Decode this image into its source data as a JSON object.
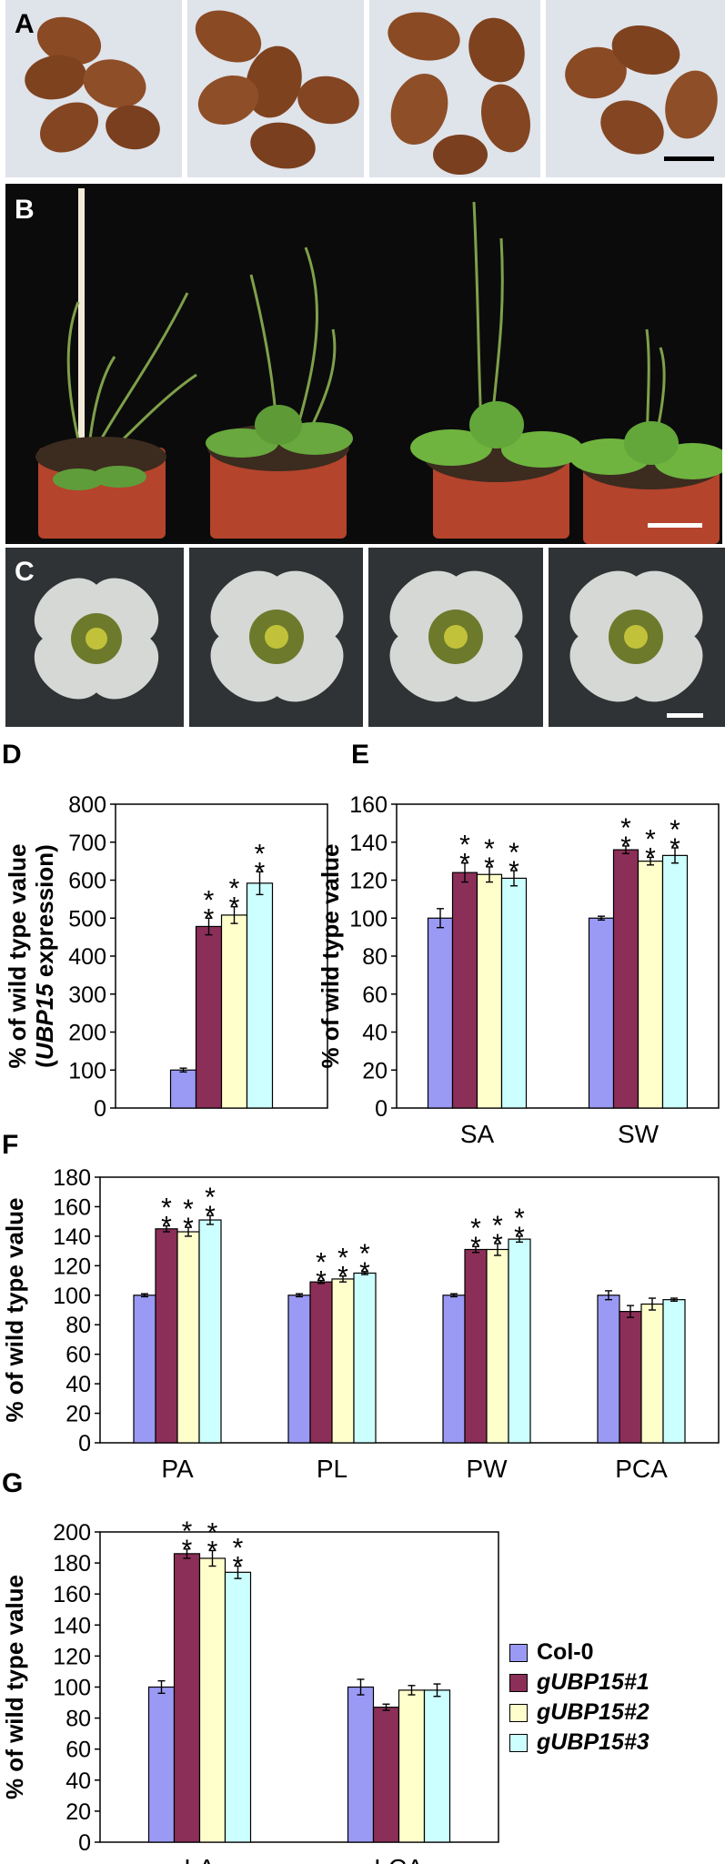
{
  "panel_labels": {
    "A": "A",
    "B": "B",
    "C": "C",
    "D": "D",
    "E": "E",
    "F": "F",
    "G": "G"
  },
  "colors": {
    "col0": "#9a9af5",
    "g1": "#8b2f58",
    "g2": "#ffffcc",
    "g3": "#ccffff",
    "photo_a_bg": "#dfe3ea",
    "photo_b_bg": "#0b0b0b",
    "photo_c_bg": "#2f3336"
  },
  "legend": [
    {
      "label": "Col-0",
      "color": "#9a9af5",
      "italic": false
    },
    {
      "label": "gUBP15#1",
      "color": "#8b2f58",
      "italic": true
    },
    {
      "label": "gUBP15#2",
      "color": "#ffffcc",
      "italic": true
    },
    {
      "label": "gUBP15#3",
      "color": "#ccffff",
      "italic": true
    }
  ],
  "chart_data": [
    {
      "panel": "D",
      "type": "bar",
      "ylabel_line1": "% of wild type value",
      "ylabel_line2_prefix": "(",
      "ylabel_line2_italic": "UBP15",
      "ylabel_line2_suffix": " expression)",
      "ylim": [
        0,
        800
      ],
      "yticks": [
        "0",
        "100",
        "200",
        "300",
        "400",
        "500",
        "600",
        "700",
        "800"
      ],
      "categories": [
        ""
      ],
      "series": [
        {
          "name": "Col-0",
          "values": [
            100
          ],
          "errors": [
            5
          ],
          "stars": [
            ""
          ]
        },
        {
          "name": "gUBP15#1",
          "values": [
            478
          ],
          "errors": [
            22
          ],
          "stars": [
            "**"
          ]
        },
        {
          "name": "gUBP15#2",
          "values": [
            508
          ],
          "errors": [
            22
          ],
          "stars": [
            "**"
          ]
        },
        {
          "name": "gUBP15#3",
          "values": [
            592
          ],
          "errors": [
            30
          ],
          "stars": [
            "**"
          ]
        }
      ]
    },
    {
      "panel": "E",
      "type": "bar",
      "ylabel": "% of wild type value",
      "ylim": [
        0,
        160
      ],
      "yticks": [
        "0",
        "20",
        "40",
        "60",
        "80",
        "100",
        "120",
        "140",
        "160"
      ],
      "categories": [
        "SA",
        "SW"
      ],
      "series": [
        {
          "name": "Col-0",
          "values": [
            100,
            100
          ],
          "errors": [
            5,
            1
          ],
          "stars": [
            "",
            ""
          ]
        },
        {
          "name": "gUBP15#1",
          "values": [
            124,
            136
          ],
          "errors": [
            5,
            2
          ],
          "stars": [
            "**",
            "**"
          ]
        },
        {
          "name": "gUBP15#2",
          "values": [
            123,
            130
          ],
          "errors": [
            4,
            2
          ],
          "stars": [
            "**",
            "**"
          ]
        },
        {
          "name": "gUBP15#3",
          "values": [
            121,
            133
          ],
          "errors": [
            4,
            4
          ],
          "stars": [
            "**",
            "**"
          ]
        }
      ]
    },
    {
      "panel": "F",
      "type": "bar",
      "ylabel": "% of wild type value",
      "ylim": [
        0,
        180
      ],
      "yticks": [
        "0",
        "20",
        "40",
        "60",
        "80",
        "100",
        "120",
        "140",
        "160",
        "180"
      ],
      "categories": [
        "PA",
        "PL",
        "PW",
        "PCA"
      ],
      "series": [
        {
          "name": "Col-0",
          "values": [
            100,
            100,
            100,
            100
          ],
          "errors": [
            1,
            1,
            1,
            3
          ],
          "stars": [
            "",
            "",
            "",
            ""
          ]
        },
        {
          "name": "gUBP15#1",
          "values": [
            145,
            109,
            131,
            89
          ],
          "errors": [
            2,
            1,
            2,
            4
          ],
          "stars": [
            "**",
            "**",
            "**",
            ""
          ]
        },
        {
          "name": "gUBP15#2",
          "values": [
            143,
            111,
            131,
            94
          ],
          "errors": [
            3,
            2,
            4,
            4
          ],
          "stars": [
            "**",
            "**",
            "**",
            ""
          ]
        },
        {
          "name": "gUBP15#3",
          "values": [
            151,
            115,
            138,
            97
          ],
          "errors": [
            3,
            1,
            2,
            1
          ],
          "stars": [
            "**",
            "**",
            "**",
            ""
          ]
        }
      ]
    },
    {
      "panel": "G",
      "type": "bar",
      "ylabel": "% of wild type value",
      "ylim": [
        0,
        200
      ],
      "yticks": [
        "0",
        "20",
        "40",
        "60",
        "80",
        "100",
        "120",
        "140",
        "160",
        "180",
        "200"
      ],
      "categories": [
        "LA",
        "LCA"
      ],
      "series": [
        {
          "name": "Col-0",
          "values": [
            100,
            100
          ],
          "errors": [
            4,
            5
          ],
          "stars": [
            "",
            ""
          ]
        },
        {
          "name": "gUBP15#1",
          "values": [
            186,
            87
          ],
          "errors": [
            3,
            2
          ],
          "stars": [
            "**",
            ""
          ]
        },
        {
          "name": "gUBP15#2",
          "values": [
            183,
            98
          ],
          "errors": [
            5,
            3
          ],
          "stars": [
            "**",
            ""
          ]
        },
        {
          "name": "gUBP15#3",
          "values": [
            174,
            98
          ],
          "errors": [
            4,
            4
          ],
          "stars": [
            "**",
            ""
          ]
        }
      ]
    }
  ]
}
